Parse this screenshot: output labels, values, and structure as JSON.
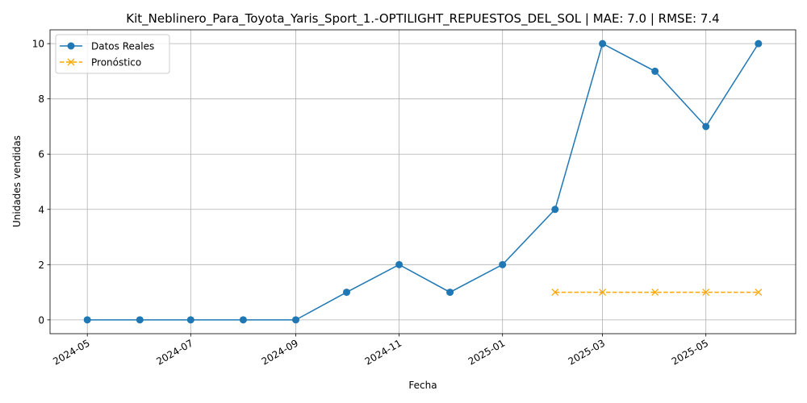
{
  "chart_data": {
    "type": "line",
    "title": "Kit_Neblinero_Para_Toyota_Yaris_Sport_1.-OPTILIGHT_REPUESTOS_DEL_SOL | MAE: 7.0 | RMSE: 7.4",
    "xlabel": "Fecha",
    "ylabel": "Unidades vendidas",
    "x_ticks": [
      "2024-05",
      "2024-07",
      "2024-09",
      "2024-11",
      "2025-01",
      "2025-03",
      "2025-05"
    ],
    "y_ticks": [
      0,
      2,
      4,
      6,
      8,
      10
    ],
    "ylim": [
      -0.5,
      10.5
    ],
    "xlim": [
      "2024-04-09",
      "2025-06-23"
    ],
    "grid": true,
    "legend_position": "top-left",
    "series": [
      {
        "name": "Datos Reales",
        "color": "#1f77b4",
        "marker": "circle",
        "linestyle": "solid",
        "x": [
          "2024-05-01",
          "2024-06-01",
          "2024-07-01",
          "2024-08-01",
          "2024-09-01",
          "2024-10-01",
          "2024-11-01",
          "2024-12-01",
          "2025-01-01",
          "2025-02-01",
          "2025-03-01",
          "2025-04-01",
          "2025-05-01",
          "2025-06-01"
        ],
        "values": [
          0,
          0,
          0,
          0,
          0,
          1,
          2,
          1,
          2,
          4,
          10,
          9,
          7,
          10
        ]
      },
      {
        "name": "Pronóstico",
        "color": "#ffa500",
        "marker": "x",
        "linestyle": "dashed",
        "x": [
          "2025-02-01",
          "2025-03-01",
          "2025-04-01",
          "2025-05-01",
          "2025-06-01"
        ],
        "values": [
          1,
          1,
          1,
          1,
          1
        ]
      }
    ]
  }
}
